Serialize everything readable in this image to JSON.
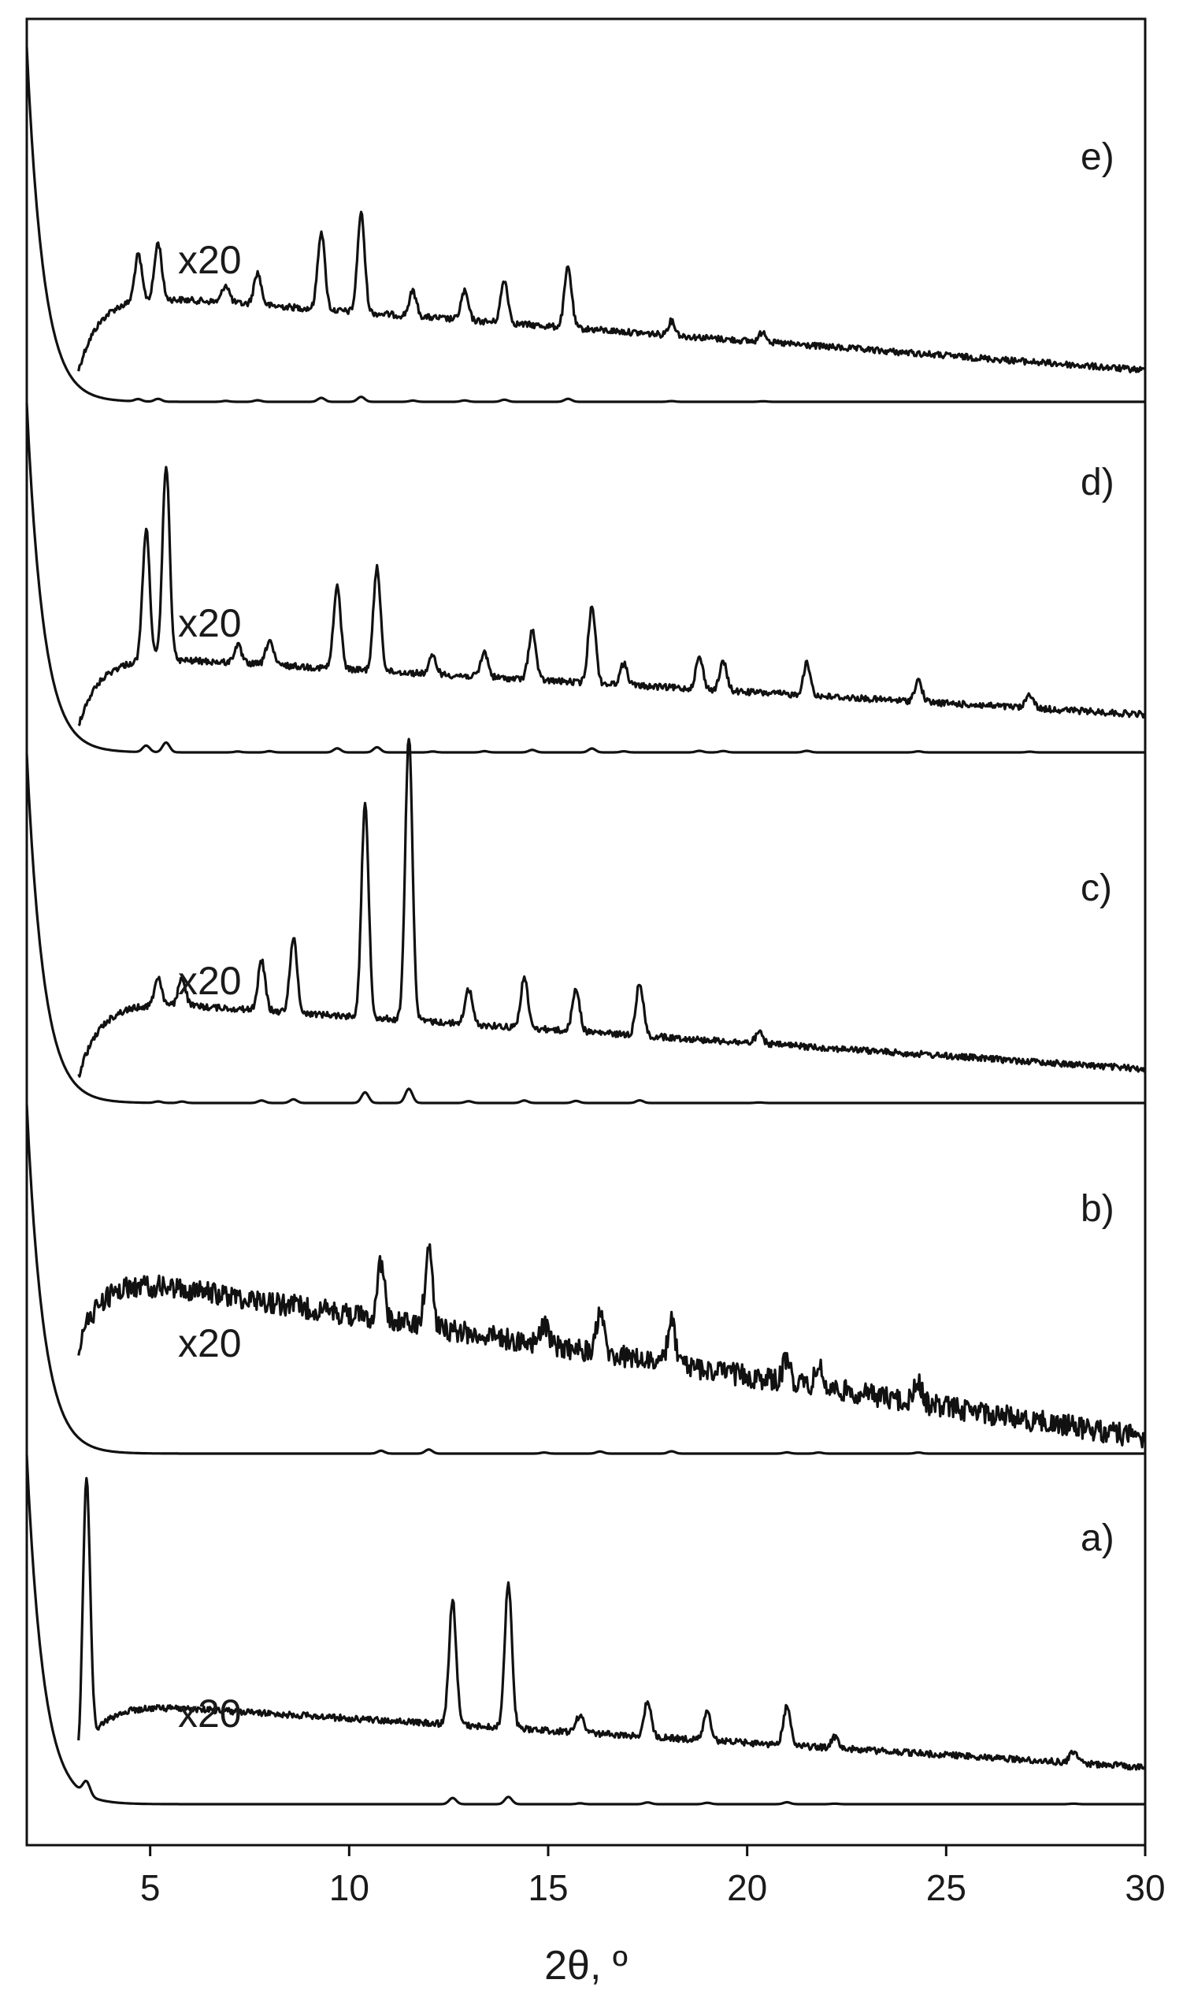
{
  "chart_data": {
    "type": "line",
    "xlabel": "2θ, º",
    "xlim": [
      1.9,
      30
    ],
    "ticks": [
      5,
      10,
      15,
      20,
      25,
      30
    ],
    "grid": false,
    "panels": [
      {
        "label": "e)",
        "scale_label": "x20",
        "peaks": [
          [
            4.7,
            0.13
          ],
          [
            5.2,
            0.16
          ],
          [
            6.9,
            0.05
          ],
          [
            7.7,
            0.09
          ],
          [
            9.3,
            0.22
          ],
          [
            10.3,
            0.28
          ],
          [
            11.6,
            0.07
          ],
          [
            12.9,
            0.08
          ],
          [
            13.9,
            0.12
          ],
          [
            15.5,
            0.17
          ],
          [
            18.1,
            0.04
          ],
          [
            20.4,
            0.03
          ]
        ]
      },
      {
        "label": "d)",
        "scale_label": "x20",
        "peaks": [
          [
            4.9,
            0.37
          ],
          [
            5.4,
            0.55
          ],
          [
            7.2,
            0.05
          ],
          [
            8.0,
            0.07
          ],
          [
            9.7,
            0.23
          ],
          [
            10.7,
            0.29
          ],
          [
            12.1,
            0.05
          ],
          [
            13.4,
            0.07
          ],
          [
            14.6,
            0.14
          ],
          [
            16.1,
            0.22
          ],
          [
            16.9,
            0.06
          ],
          [
            18.8,
            0.09
          ],
          [
            19.4,
            0.08
          ],
          [
            21.5,
            0.09
          ],
          [
            24.3,
            0.06
          ],
          [
            27.1,
            0.04
          ]
        ]
      },
      {
        "label": "c)",
        "scale_label": "x20",
        "peaks": [
          [
            5.2,
            0.08
          ],
          [
            5.8,
            0.08
          ],
          [
            7.8,
            0.14
          ],
          [
            8.6,
            0.21
          ],
          [
            10.4,
            0.6
          ],
          [
            11.5,
            0.8
          ],
          [
            13.0,
            0.1
          ],
          [
            14.4,
            0.14
          ],
          [
            15.7,
            0.12
          ],
          [
            17.3,
            0.15
          ],
          [
            20.3,
            0.03
          ]
        ]
      },
      {
        "label": "b)",
        "scale_label": "x20",
        "peaks": [
          [
            10.8,
            0.16
          ],
          [
            12.0,
            0.23
          ],
          [
            14.9,
            0.06
          ],
          [
            16.3,
            0.12
          ],
          [
            18.1,
            0.13
          ],
          [
            21.0,
            0.07
          ],
          [
            21.8,
            0.06
          ],
          [
            24.3,
            0.06
          ]
        ]
      },
      {
        "label": "a)",
        "scale_label": "x20",
        "peaks": [
          [
            3.4,
            0.75
          ],
          [
            12.6,
            0.35
          ],
          [
            14.0,
            0.41
          ],
          [
            15.8,
            0.05
          ],
          [
            17.5,
            0.1
          ],
          [
            19.0,
            0.08
          ],
          [
            21.0,
            0.11
          ],
          [
            22.2,
            0.03
          ],
          [
            28.2,
            0.03
          ]
        ]
      }
    ]
  }
}
